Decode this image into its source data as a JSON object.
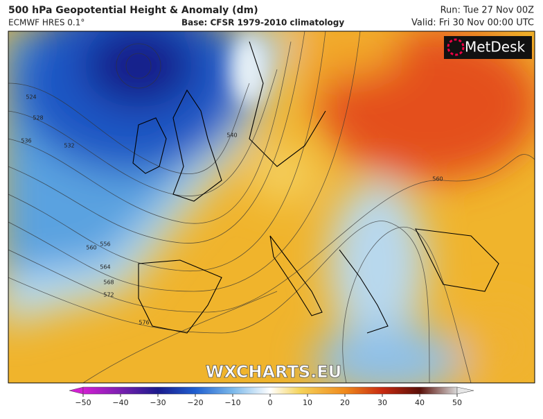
{
  "header": {
    "title": "500 hPa Geopotential Height & Anomaly (dm)",
    "model": "ECMWF HRES 0.1°",
    "base": "Base: CFSR 1979-2010 climatology",
    "run": "Run: Tue 27 Nov 00Z",
    "valid": "Valid: Fri 30 Nov 00:00 UTC"
  },
  "logo": "MetDesk",
  "watermark": "WXCHARTS.EU",
  "contour_labels": [
    524,
    528,
    536,
    532,
    540,
    556,
    560,
    564,
    568,
    572,
    576,
    560
  ],
  "colorbar": {
    "ticks": [
      {
        "value": -50,
        "label": "−50"
      },
      {
        "value": -40,
        "label": "−40"
      },
      {
        "value": -30,
        "label": "−30"
      },
      {
        "value": -20,
        "label": "−20"
      },
      {
        "value": -10,
        "label": "−10"
      },
      0,
      10,
      20,
      30,
      40,
      50
    ]
  }
}
